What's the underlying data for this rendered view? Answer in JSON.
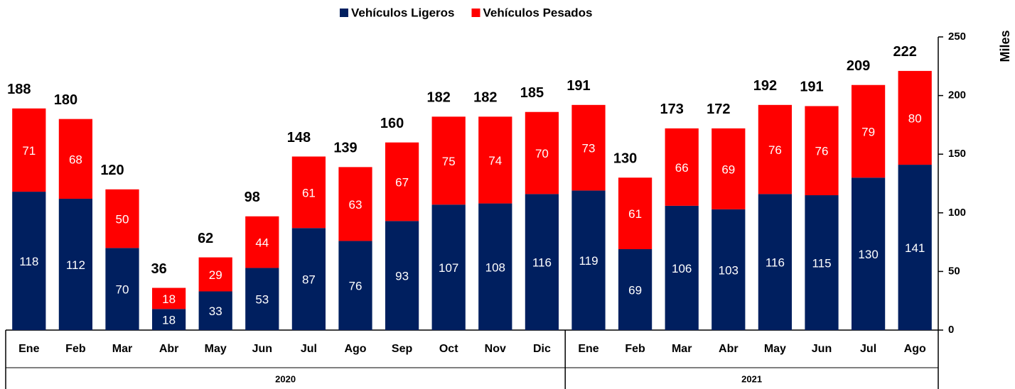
{
  "chart_data": {
    "type": "stacked_bar",
    "groups": [
      {
        "label": "2020",
        "categories": [
          "Ene",
          "Feb",
          "Mar",
          "Abr",
          "May",
          "Jun",
          "Jul",
          "Ago",
          "Sep",
          "Oct",
          "Nov",
          "Dic"
        ]
      },
      {
        "label": "2021",
        "categories": [
          "Ene",
          "Feb",
          "Mar",
          "Abr",
          "May",
          "Jun",
          "Jul",
          "Ago"
        ]
      }
    ],
    "series": [
      {
        "name": "Vehículos Ligeros",
        "color": "#001f5f",
        "values": [
          118,
          112,
          70,
          18,
          33,
          53,
          87,
          76,
          93,
          107,
          108,
          116,
          119,
          69,
          106,
          103,
          116,
          115,
          130,
          141
        ]
      },
      {
        "name": "Vehículos Pesados",
        "color": "#ff0000",
        "values": [
          71,
          68,
          50,
          18,
          29,
          44,
          61,
          63,
          67,
          75,
          74,
          70,
          73,
          61,
          66,
          69,
          76,
          76,
          79,
          80
        ]
      }
    ],
    "totals": [
      188,
      180,
      120,
      36,
      62,
      98,
      148,
      139,
      160,
      182,
      182,
      185,
      191,
      130,
      173,
      172,
      192,
      191,
      209,
      222
    ],
    "y_label": "Miles",
    "y_axis_position": "right",
    "ylim": [
      0,
      250
    ],
    "yticks": [
      0,
      50,
      100,
      150,
      200,
      250
    ],
    "legend": "top"
  }
}
